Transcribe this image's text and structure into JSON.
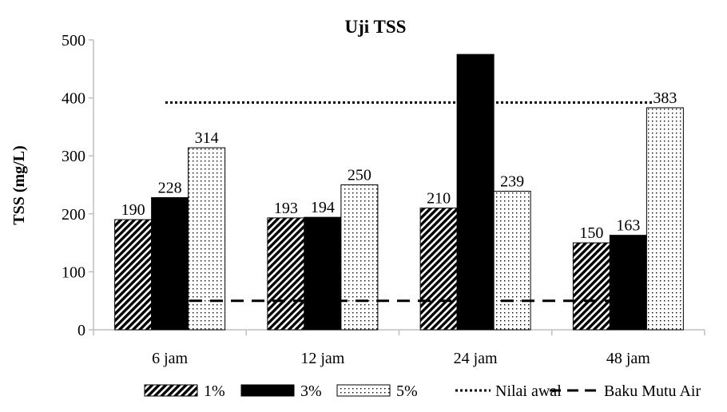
{
  "chart_data": {
    "type": "bar",
    "title": "Uji TSS",
    "xlabel": "",
    "ylabel": "TSS (mg/L)",
    "ylim": [
      0,
      500
    ],
    "yticks": [
      0,
      100,
      200,
      300,
      400,
      500
    ],
    "categories": [
      "6 jam",
      "12 jam",
      "24 jam",
      "48 jam"
    ],
    "series": [
      {
        "name": "1%",
        "values": [
          190,
          193,
          210,
          150
        ],
        "labels": [
          "190",
          "193",
          "210",
          "150"
        ],
        "pattern": "diagonal-hatch"
      },
      {
        "name": "3%",
        "values": [
          228,
          194,
          475,
          163
        ],
        "labels": [
          "228",
          "194",
          "",
          "163"
        ],
        "pattern": "solid-black"
      },
      {
        "name": "5%",
        "values": [
          314,
          250,
          239,
          383
        ],
        "labels": [
          "314",
          "250",
          "239",
          "383"
        ],
        "pattern": "dotted"
      }
    ],
    "reference_lines": [
      {
        "name": "Nilai awal",
        "value": 392,
        "style": "dotted"
      },
      {
        "name": "Baku Mutu Air",
        "value": 50,
        "style": "dashed"
      }
    ],
    "legend": {
      "position": "bottom",
      "items": [
        "1%",
        "3%",
        "5%",
        "Nilai awal",
        "Baku Mutu Air"
      ]
    },
    "grid": false,
    "colors": {
      "bar_fill": "#000000",
      "bar_bg": "#ffffff",
      "axis": "#bfbfbf",
      "text": "#000000"
    }
  }
}
